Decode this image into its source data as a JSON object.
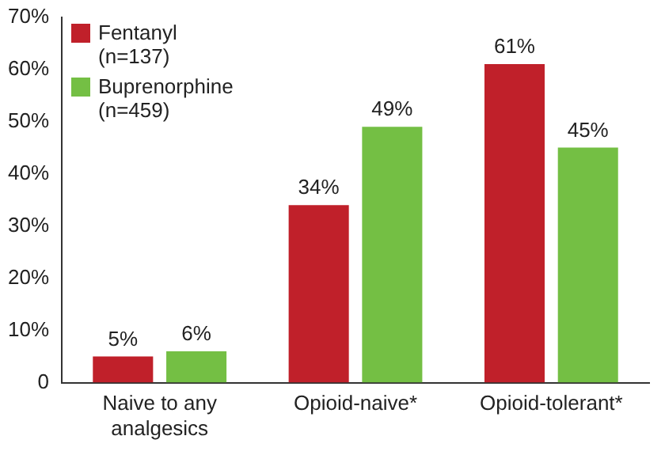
{
  "chart_data": {
    "type": "bar",
    "categories": [
      "Naive to any analgesics",
      "Opioid-naive*",
      "Opioid-tolerant*"
    ],
    "series": [
      {
        "name": "Fentanyl (n=137)",
        "color": "#c0202a",
        "values": [
          5,
          34,
          61
        ],
        "value_labels": [
          "5%",
          "34%",
          "61%"
        ]
      },
      {
        "name": "Buprenorphine (n=459)",
        "color": "#74bf44",
        "values": [
          6,
          49,
          45
        ],
        "value_labels": [
          "6%",
          "49%",
          "45%"
        ]
      }
    ],
    "ylim": [
      0,
      70
    ],
    "yticks": [
      0,
      {
        "value": 10,
        "label": "10%"
      },
      {
        "value": 20,
        "label": "20%"
      },
      {
        "value": 30,
        "label": "30%"
      },
      {
        "value": 40,
        "label": "40%"
      },
      {
        "value": 50,
        "label": "50%"
      },
      {
        "value": 60,
        "label": "60%"
      },
      {
        "value": 70,
        "label": "70%"
      }
    ],
    "grid": false,
    "legend": "top left"
  }
}
